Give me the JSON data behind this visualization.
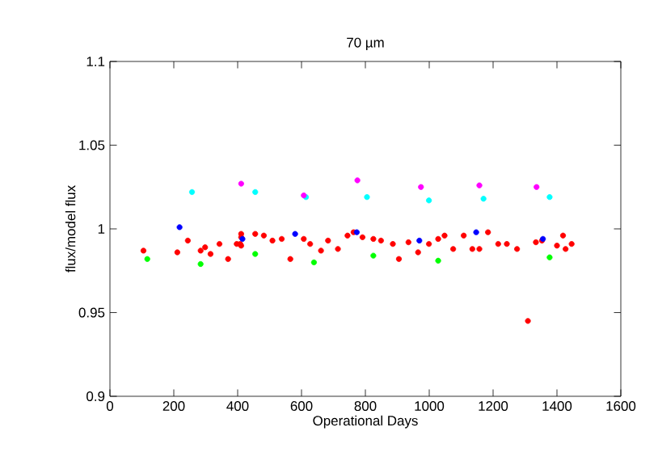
{
  "chart_data": {
    "type": "scatter",
    "title": "70 µm",
    "xlabel": "Operational Days",
    "ylabel": "flux/model flux",
    "marker": "circle",
    "xlim": [
      0,
      1600
    ],
    "ylim": [
      0.9,
      1.1
    ],
    "xticks": [
      0,
      200,
      400,
      600,
      800,
      1000,
      1200,
      1400,
      1600
    ],
    "yticks": [
      0.9,
      0.95,
      1,
      1.05,
      1.1
    ],
    "series": [
      {
        "color": "#ff0000",
        "x": [
          105,
          211,
          244,
          284,
          298,
          315,
          343,
          370,
          397,
          408,
          411,
          411,
          411,
          455,
          482,
          509,
          538,
          565,
          607,
          627,
          661,
          683,
          714,
          744,
          763,
          791,
          825,
          849,
          886,
          905,
          935,
          965,
          999,
          1028,
          1048,
          1075,
          1108,
          1135,
          1157,
          1184,
          1216,
          1243,
          1275,
          1309,
          1334,
          1353,
          1400,
          1419,
          1427,
          1446
        ],
        "values": [
          0.987,
          0.986,
          0.993,
          0.987,
          0.989,
          0.985,
          0.991,
          0.982,
          0.991,
          0.991,
          0.997,
          0.995,
          0.99,
          0.997,
          0.996,
          0.993,
          0.994,
          0.982,
          0.994,
          0.991,
          0.987,
          0.993,
          0.988,
          0.996,
          0.998,
          0.995,
          0.994,
          0.993,
          0.991,
          0.982,
          0.992,
          0.986,
          0.991,
          0.994,
          0.996,
          0.988,
          0.996,
          0.988,
          0.988,
          0.998,
          0.991,
          0.991,
          0.988,
          0.945,
          0.992,
          0.993,
          0.99,
          0.996,
          0.988,
          0.991
        ]
      },
      {
        "color": "#00ff00",
        "x": [
          117,
          284,
          455,
          639,
          825,
          1028,
          1377
        ],
        "values": [
          0.982,
          0.979,
          0.985,
          0.98,
          0.984,
          0.981,
          0.983
        ]
      },
      {
        "color": "#0000ff",
        "x": [
          218,
          415,
          580,
          773,
          969,
          1147,
          1356
        ],
        "values": [
          1.001,
          0.994,
          0.997,
          0.998,
          0.993,
          0.998,
          0.994
        ]
      },
      {
        "color": "#00ffff",
        "x": [
          257,
          455,
          614,
          805,
          999,
          1170,
          1377
        ],
        "values": [
          1.022,
          1.022,
          1.019,
          1.019,
          1.017,
          1.018,
          1.019
        ]
      },
      {
        "color": "#ff00ff",
        "x": [
          411,
          607,
          775,
          974,
          1157,
          1336
        ],
        "values": [
          1.027,
          1.02,
          1.029,
          1.025,
          1.026,
          1.025
        ]
      }
    ]
  }
}
